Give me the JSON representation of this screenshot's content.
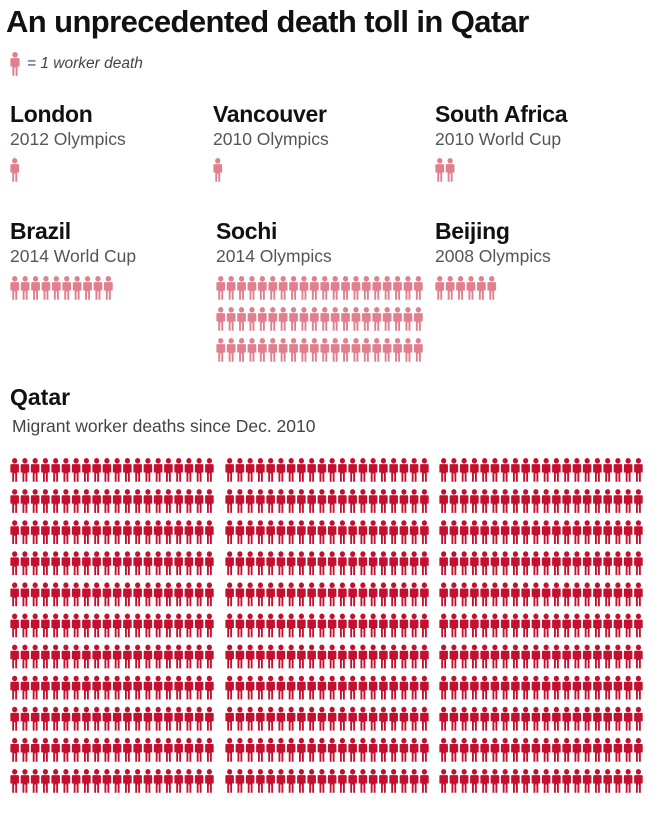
{
  "title": "An unprecedented death toll in Qatar",
  "legend": {
    "text": "= 1 worker death",
    "icon": "person-icon",
    "color": "#e0808f"
  },
  "colors": {
    "venue_icon": "#e0808f",
    "qatar_icon": "#c4102f",
    "text": "#111111",
    "subtext": "#555555"
  },
  "chart_data": {
    "type": "pictogram",
    "unit": "1 worker death",
    "venues": [
      {
        "name": "London",
        "event": "2012 Olympics",
        "value": 1
      },
      {
        "name": "Vancouver",
        "event": "2010 Olympics",
        "value": 1
      },
      {
        "name": "South Africa",
        "event": "2010 World Cup",
        "value": 2
      },
      {
        "name": "Brazil",
        "event": "2014 World Cup",
        "value": 10
      },
      {
        "name": "Sochi",
        "event": "2014 Olympics",
        "value": 60
      },
      {
        "name": "Beijing",
        "event": "2008 Olympics",
        "value": 6
      }
    ],
    "qatar": {
      "name": "Qatar",
      "subtitle": "Migrant worker deaths since Dec. 2010",
      "visible_rows": 11,
      "icons_per_row": 60
    }
  }
}
